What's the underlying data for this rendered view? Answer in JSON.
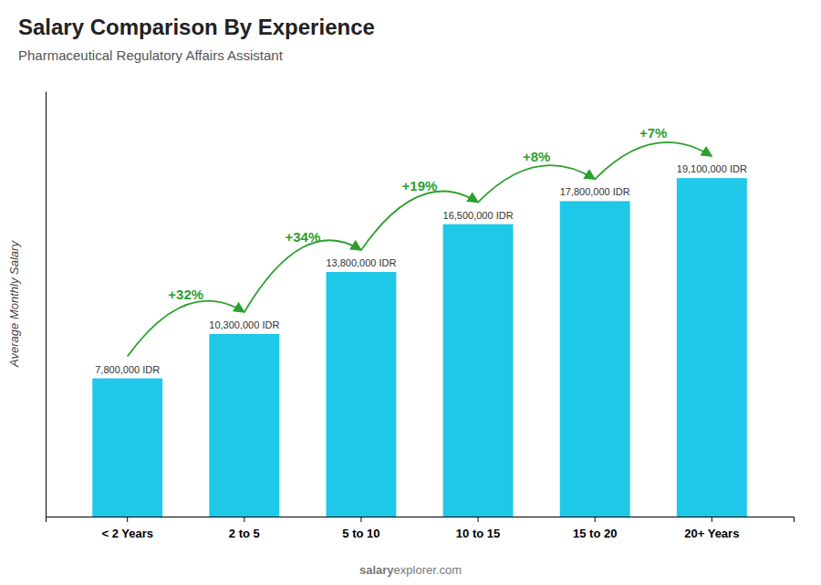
{
  "chart_data": {
    "type": "bar",
    "title": "Salary Comparison By Experience",
    "subtitle": "Pharmaceutical Regulatory Affairs Assistant",
    "ylabel": "Average Monthly Salary",
    "categories": [
      "< 2 Years",
      "2 to 5",
      "5 to 10",
      "10 to 15",
      "15 to 20",
      "20+ Years"
    ],
    "values": [
      7800000,
      10300000,
      13800000,
      16500000,
      17800000,
      19100000
    ],
    "value_labels": [
      "7,800,000 IDR",
      "10,300,000 IDR",
      "13,800,000 IDR",
      "16,500,000 IDR",
      "17,800,000 IDR",
      "19,100,000 IDR"
    ],
    "data_labels": true,
    "annotations": [
      null,
      "+32%",
      "+34%",
      "+19%",
      "+8%",
      "+7%"
    ],
    "watermark": [
      "salary",
      "explorer.com"
    ],
    "color": "#1ec8e8",
    "ylim": [
      0,
      24000000
    ],
    "tick_labels": "x",
    "grid": false
  }
}
